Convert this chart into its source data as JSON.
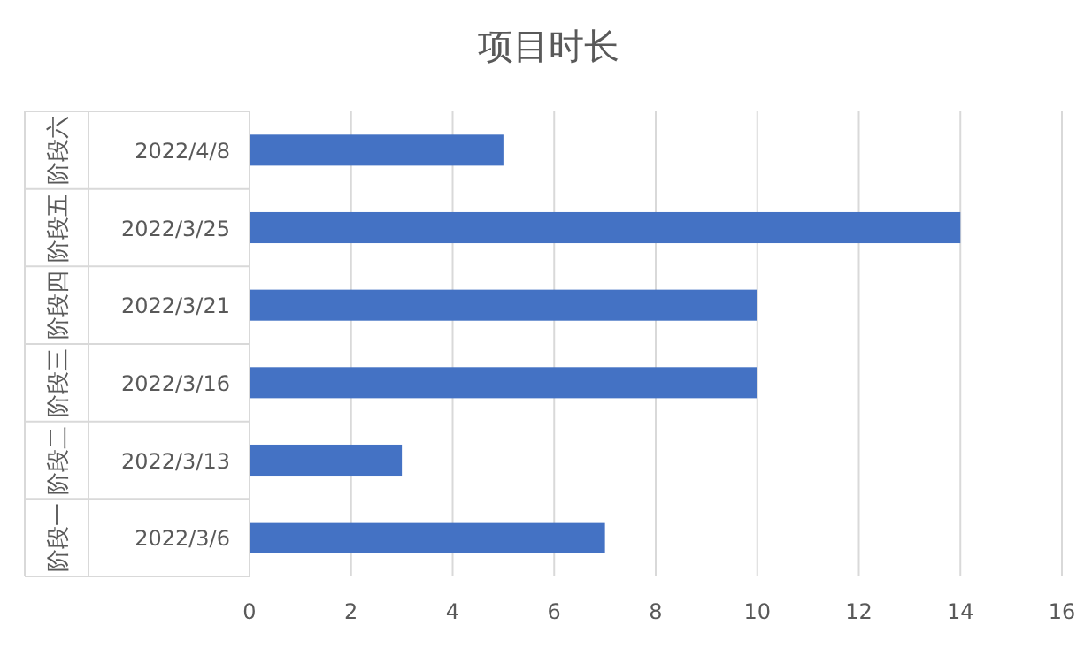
{
  "chart_data": {
    "type": "bar",
    "orientation": "horizontal",
    "title": "项目时长",
    "categories": [
      "2022/4/8",
      "2022/3/25",
      "2022/3/21",
      "2022/3/16",
      "2022/3/13",
      "2022/3/6"
    ],
    "values": [
      5,
      14,
      10,
      10,
      3,
      7
    ],
    "color": "#4472c4",
    "annotations": [
      "阶段六",
      "阶段五",
      "阶段四",
      "阶段三",
      "阶段二",
      "阶段一"
    ],
    "xlim": [
      0,
      16
    ],
    "xticks": [
      0,
      2,
      4,
      6,
      8,
      10,
      12,
      14,
      16
    ],
    "grid": "x"
  }
}
